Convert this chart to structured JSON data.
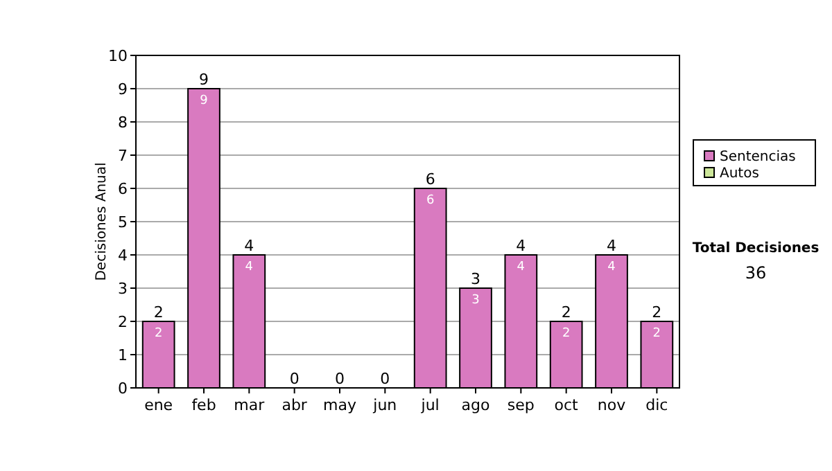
{
  "chart_data": {
    "type": "bar",
    "stacked": true,
    "ylabel": "Decisiones Anual",
    "categories": [
      "ene",
      "feb",
      "mar",
      "abr",
      "may",
      "jun",
      "jul",
      "ago",
      "sep",
      "oct",
      "nov",
      "dic"
    ],
    "series": [
      {
        "name": "Sentencias",
        "color": "#d97ac0",
        "values": [
          2,
          9,
          4,
          0,
          0,
          0,
          6,
          3,
          4,
          2,
          4,
          2
        ],
        "value_labels": [
          "2",
          "9",
          "4",
          null,
          null,
          null,
          "6",
          "3",
          "4",
          "2",
          "4",
          "2"
        ]
      },
      {
        "name": "Autos",
        "color": "#cce699",
        "values": [
          0,
          0,
          0,
          0,
          0,
          0,
          0,
          0,
          0,
          0,
          0,
          0
        ]
      }
    ],
    "totals": [
      "2",
      "9",
      "4",
      "0",
      "0",
      "0",
      "6",
      "3",
      "4",
      "2",
      "4",
      "2"
    ],
    "ylim": [
      0,
      10
    ],
    "yticks": [
      0,
      1,
      2,
      3,
      4,
      5,
      6,
      7,
      8,
      9,
      10
    ],
    "grid": "y",
    "legend": "right",
    "annotations": [
      "Total Decisiones",
      "36"
    ]
  }
}
